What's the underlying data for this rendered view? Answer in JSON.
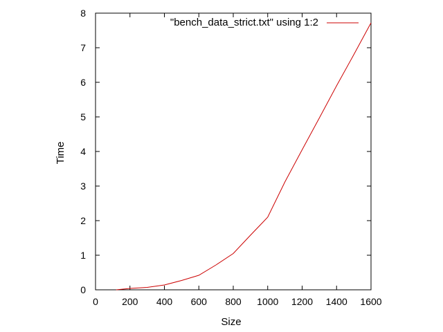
{
  "chart_data": {
    "type": "line",
    "xlabel": "Size",
    "ylabel": "Time",
    "xlim": [
      0,
      1600
    ],
    "ylim": [
      0,
      8
    ],
    "xticks": [
      0,
      200,
      400,
      600,
      800,
      1000,
      1200,
      1400,
      1600
    ],
    "yticks": [
      0,
      1,
      2,
      3,
      4,
      5,
      6,
      7,
      8
    ],
    "grid": false,
    "legend_position": "top-right",
    "series": [
      {
        "name": "\"bench_data_strict.txt\" using 1:2",
        "color": "#cc0000",
        "x": [
          120,
          200,
          300,
          400,
          500,
          600,
          700,
          800,
          900,
          1000,
          1100,
          1200,
          1300,
          1400,
          1500,
          1600
        ],
        "y": [
          0.0,
          0.04,
          0.07,
          0.14,
          0.27,
          0.42,
          0.72,
          1.05,
          1.58,
          2.1,
          3.12,
          4.05,
          4.97,
          5.9,
          6.8,
          7.72
        ]
      }
    ]
  }
}
